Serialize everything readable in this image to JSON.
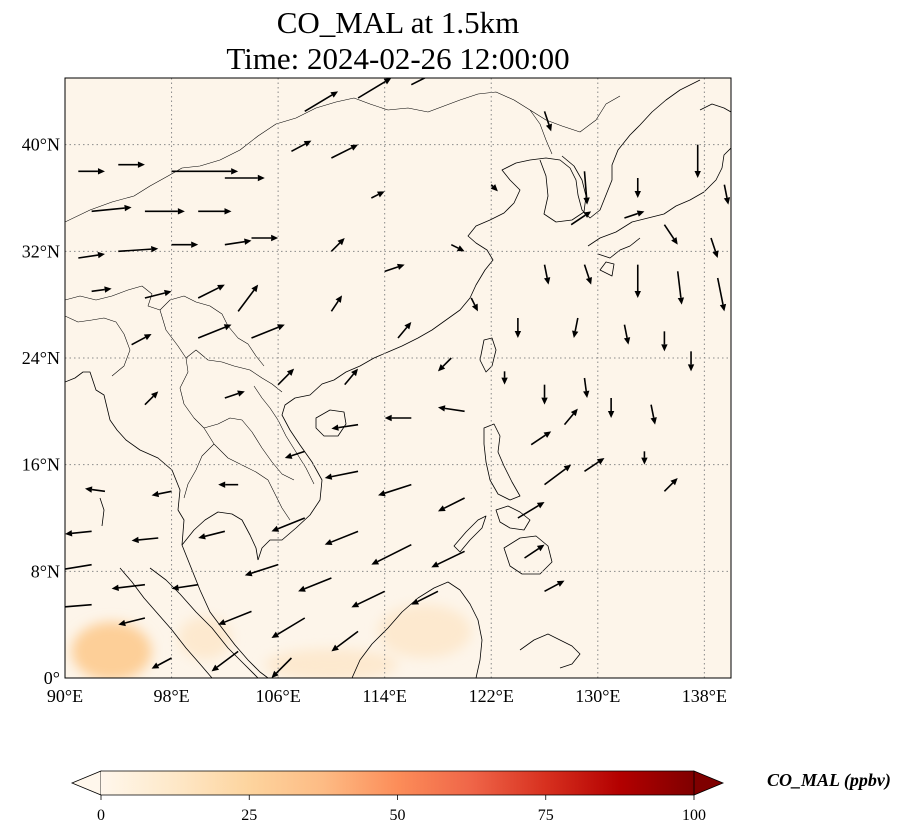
{
  "title": {
    "line1": "CO_MAL at 1.5km",
    "line2": "Time: 2024-02-26 12:00:00"
  },
  "map": {
    "projection": "PlateCarree",
    "lon_range": [
      90,
      140
    ],
    "lat_range": [
      0,
      45
    ],
    "gridlines": "dotted",
    "coastlines": true,
    "borders": true,
    "x_ticks": [
      {
        "lon": 90,
        "label": "90°E"
      },
      {
        "lon": 98,
        "label": "98°E"
      },
      {
        "lon": 106,
        "label": "106°E"
      },
      {
        "lon": 114,
        "label": "114°E"
      },
      {
        "lon": 122,
        "label": "122°E"
      },
      {
        "lon": 130,
        "label": "130°E"
      },
      {
        "lon": 138,
        "label": "138°E"
      }
    ],
    "y_ticks": [
      {
        "lat": 0,
        "label": "0°"
      },
      {
        "lat": 8,
        "label": "8°N"
      },
      {
        "lat": 16,
        "label": "16°N"
      },
      {
        "lat": 24,
        "label": "24°N"
      },
      {
        "lat": 32,
        "label": "32°N"
      },
      {
        "lat": 40,
        "label": "40°N"
      }
    ],
    "field_colors": {
      "background": "#fdf5ea",
      "low": "#fde9cf",
      "mid": "#fdcf98"
    },
    "enhanced_regions": [
      {
        "lon": 93.5,
        "lat": 2.0,
        "rlon": 3.0,
        "rlat": 2.2,
        "level": "mid"
      },
      {
        "lon": 100.5,
        "lat": 3.0,
        "rlon": 2.0,
        "rlat": 1.6,
        "level": "low"
      },
      {
        "lon": 110.0,
        "lat": 1.0,
        "rlon": 5.0,
        "rlat": 1.2,
        "level": "low"
      },
      {
        "lon": 117.0,
        "lat": 3.5,
        "rlon": 3.5,
        "rlat": 2.0,
        "level": "low"
      }
    ],
    "wind_vectors": [
      {
        "lon": 91.0,
        "lat": 38.0,
        "u": 2.0,
        "v": 0.0
      },
      {
        "lon": 94.0,
        "lat": 38.5,
        "u": 2.0,
        "v": 0.0
      },
      {
        "lon": 98.0,
        "lat": 38.0,
        "u": 5.0,
        "v": 0.0
      },
      {
        "lon": 102.0,
        "lat": 37.5,
        "u": 3.0,
        "v": 0.0
      },
      {
        "lon": 92.0,
        "lat": 35.0,
        "u": 3.0,
        "v": 0.3
      },
      {
        "lon": 96.0,
        "lat": 35.0,
        "u": 3.0,
        "v": 0.0
      },
      {
        "lon": 100.0,
        "lat": 35.0,
        "u": 2.5,
        "v": 0.0
      },
      {
        "lon": 104.0,
        "lat": 33.0,
        "u": 2.0,
        "v": 0.0
      },
      {
        "lon": 91.0,
        "lat": 31.5,
        "u": 2.0,
        "v": 0.3
      },
      {
        "lon": 94.0,
        "lat": 32.0,
        "u": 3.0,
        "v": 0.2
      },
      {
        "lon": 98.0,
        "lat": 32.5,
        "u": 2.0,
        "v": 0.0
      },
      {
        "lon": 102.0,
        "lat": 32.5,
        "u": 2.0,
        "v": 0.3
      },
      {
        "lon": 92.0,
        "lat": 29.0,
        "u": 1.5,
        "v": 0.2
      },
      {
        "lon": 96.0,
        "lat": 28.5,
        "u": 2.0,
        "v": 0.5
      },
      {
        "lon": 100.0,
        "lat": 28.5,
        "u": 2.0,
        "v": 1.0
      },
      {
        "lon": 103.0,
        "lat": 27.5,
        "u": 1.5,
        "v": 2.0
      },
      {
        "lon": 100.0,
        "lat": 25.5,
        "u": 2.5,
        "v": 1.0
      },
      {
        "lon": 104.0,
        "lat": 25.5,
        "u": 2.5,
        "v": 1.0
      },
      {
        "lon": 95.0,
        "lat": 25.0,
        "u": 1.5,
        "v": 0.8
      },
      {
        "lon": 96.0,
        "lat": 20.5,
        "u": 1.0,
        "v": 1.0
      },
      {
        "lon": 102.0,
        "lat": 21.0,
        "u": 1.5,
        "v": 0.5
      },
      {
        "lon": 106.0,
        "lat": 22.0,
        "u": 1.2,
        "v": 1.2
      },
      {
        "lon": 108.0,
        "lat": 42.5,
        "u": 2.5,
        "v": 1.5
      },
      {
        "lon": 112.0,
        "lat": 43.5,
        "u": 2.5,
        "v": 1.5
      },
      {
        "lon": 116.0,
        "lat": 44.5,
        "u": 3.0,
        "v": 1.5
      },
      {
        "lon": 110.0,
        "lat": 39.0,
        "u": 2.0,
        "v": 1.0
      },
      {
        "lon": 107.0,
        "lat": 39.5,
        "u": 1.5,
        "v": 0.8
      },
      {
        "lon": 113.0,
        "lat": 36.0,
        "u": 1.0,
        "v": 0.5
      },
      {
        "lon": 110.0,
        "lat": 32.0,
        "u": 1.0,
        "v": 1.0
      },
      {
        "lon": 114.0,
        "lat": 30.5,
        "u": 1.5,
        "v": 0.5
      },
      {
        "lon": 110.0,
        "lat": 27.5,
        "u": 0.8,
        "v": 1.2
      },
      {
        "lon": 115.0,
        "lat": 25.5,
        "u": 1.0,
        "v": 1.2
      },
      {
        "lon": 111.0,
        "lat": 22.0,
        "u": 1.0,
        "v": 1.2
      },
      {
        "lon": 116.0,
        "lat": 19.5,
        "u": -2.0,
        "v": 0.0
      },
      {
        "lon": 120.0,
        "lat": 20.0,
        "u": -2.0,
        "v": 0.3
      },
      {
        "lon": 112.0,
        "lat": 19.0,
        "u": -2.0,
        "v": -0.3
      },
      {
        "lon": 108.0,
        "lat": 17.0,
        "u": -1.5,
        "v": -0.5
      },
      {
        "lon": 112.0,
        "lat": 15.5,
        "u": -2.5,
        "v": -0.5
      },
      {
        "lon": 116.0,
        "lat": 14.5,
        "u": -2.5,
        "v": -0.8
      },
      {
        "lon": 120.0,
        "lat": 13.5,
        "u": -2.0,
        "v": -1.0
      },
      {
        "lon": 108.0,
        "lat": 12.0,
        "u": -2.5,
        "v": -1.0
      },
      {
        "lon": 112.0,
        "lat": 11.0,
        "u": -2.5,
        "v": -1.0
      },
      {
        "lon": 116.0,
        "lat": 10.0,
        "u": -3.0,
        "v": -1.5
      },
      {
        "lon": 120.0,
        "lat": 9.5,
        "u": -2.5,
        "v": -1.2
      },
      {
        "lon": 106.0,
        "lat": 8.5,
        "u": -2.5,
        "v": -0.8
      },
      {
        "lon": 110.0,
        "lat": 7.5,
        "u": -2.5,
        "v": -1.0
      },
      {
        "lon": 114.0,
        "lat": 6.5,
        "u": -2.5,
        "v": -1.2
      },
      {
        "lon": 118.0,
        "lat": 6.5,
        "u": -2.0,
        "v": -1.0
      },
      {
        "lon": 104.0,
        "lat": 5.0,
        "u": -2.5,
        "v": -1.0
      },
      {
        "lon": 108.0,
        "lat": 4.5,
        "u": -2.5,
        "v": -1.5
      },
      {
        "lon": 112.0,
        "lat": 3.5,
        "u": -2.0,
        "v": -1.5
      },
      {
        "lon": 103.0,
        "lat": 2.0,
        "u": -2.0,
        "v": -1.5
      },
      {
        "lon": 107.0,
        "lat": 1.5,
        "u": -1.5,
        "v": -1.5
      },
      {
        "lon": 92.0,
        "lat": 8.5,
        "u": -3.0,
        "v": -0.5
      },
      {
        "lon": 96.0,
        "lat": 7.0,
        "u": -2.5,
        "v": -0.3
      },
      {
        "lon": 100.0,
        "lat": 7.0,
        "u": -2.0,
        "v": -0.3
      },
      {
        "lon": 92.0,
        "lat": 5.5,
        "u": -2.5,
        "v": -0.2
      },
      {
        "lon": 96.0,
        "lat": 4.5,
        "u": -2.0,
        "v": -0.5
      },
      {
        "lon": 98.0,
        "lat": 1.5,
        "u": -1.5,
        "v": -0.8
      },
      {
        "lon": 92.0,
        "lat": 11.0,
        "u": -2.0,
        "v": -0.2
      },
      {
        "lon": 97.0,
        "lat": 10.5,
        "u": -2.0,
        "v": -0.2
      },
      {
        "lon": 93.0,
        "lat": 14.0,
        "u": -1.5,
        "v": 0.2
      },
      {
        "lon": 98.0,
        "lat": 14.0,
        "u": -1.5,
        "v": -0.3
      },
      {
        "lon": 103.0,
        "lat": 14.5,
        "u": -1.5,
        "v": 0.0
      },
      {
        "lon": 102.0,
        "lat": 11.0,
        "u": -2.0,
        "v": -0.5
      },
      {
        "lon": 124.0,
        "lat": 12.0,
        "u": 2.0,
        "v": 1.2
      },
      {
        "lon": 126.0,
        "lat": 14.5,
        "u": 2.0,
        "v": 1.5
      },
      {
        "lon": 129.0,
        "lat": 15.5,
        "u": 1.5,
        "v": 1.0
      },
      {
        "lon": 125.0,
        "lat": 17.5,
        "u": 1.5,
        "v": 1.0
      },
      {
        "lon": 127.5,
        "lat": 19.0,
        "u": 1.0,
        "v": 1.2
      },
      {
        "lon": 124.5,
        "lat": 9.0,
        "u": 1.5,
        "v": 1.0
      },
      {
        "lon": 126.0,
        "lat": 6.5,
        "u": 1.5,
        "v": 0.8
      },
      {
        "lon": 123.0,
        "lat": 23.0,
        "u": 0.0,
        "v": -1.0
      },
      {
        "lon": 126.0,
        "lat": 22.0,
        "u": 0.0,
        "v": -1.5
      },
      {
        "lon": 129.0,
        "lat": 22.5,
        "u": 0.2,
        "v": -1.5
      },
      {
        "lon": 131.0,
        "lat": 21.0,
        "u": 0.0,
        "v": -1.5
      },
      {
        "lon": 134.0,
        "lat": 20.5,
        "u": 0.3,
        "v": -1.5
      },
      {
        "lon": 124.0,
        "lat": 27.0,
        "u": 0.0,
        "v": -1.5
      },
      {
        "lon": 128.5,
        "lat": 27.0,
        "u": -0.3,
        "v": -1.5
      },
      {
        "lon": 132.0,
        "lat": 26.5,
        "u": 0.3,
        "v": -1.5
      },
      {
        "lon": 135.0,
        "lat": 26.0,
        "u": 0.0,
        "v": -1.5
      },
      {
        "lon": 137.0,
        "lat": 24.5,
        "u": 0.0,
        "v": -1.5
      },
      {
        "lon": 126.0,
        "lat": 31.0,
        "u": 0.3,
        "v": -1.5
      },
      {
        "lon": 129.0,
        "lat": 31.0,
        "u": 0.5,
        "v": -1.5
      },
      {
        "lon": 133.0,
        "lat": 31.0,
        "u": 0.0,
        "v": -2.5
      },
      {
        "lon": 136.0,
        "lat": 30.5,
        "u": 0.3,
        "v": -2.5
      },
      {
        "lon": 139.0,
        "lat": 30.0,
        "u": 0.5,
        "v": -2.5
      },
      {
        "lon": 128.0,
        "lat": 34.0,
        "u": 1.5,
        "v": 1.0
      },
      {
        "lon": 132.0,
        "lat": 34.5,
        "u": 1.5,
        "v": 0.5
      },
      {
        "lon": 135.0,
        "lat": 34.0,
        "u": 1.0,
        "v": -1.5
      },
      {
        "lon": 138.5,
        "lat": 33.0,
        "u": 0.5,
        "v": -1.5
      },
      {
        "lon": 129.0,
        "lat": 38.0,
        "u": 0.2,
        "v": -2.5
      },
      {
        "lon": 133.0,
        "lat": 37.5,
        "u": 0.0,
        "v": -1.5
      },
      {
        "lon": 137.5,
        "lat": 40.0,
        "u": 0.0,
        "v": -2.5
      },
      {
        "lon": 139.5,
        "lat": 37.0,
        "u": 0.3,
        "v": -1.5
      },
      {
        "lon": 126.0,
        "lat": 42.5,
        "u": 0.5,
        "v": -1.5
      },
      {
        "lon": 122.0,
        "lat": 37.0,
        "u": 0.5,
        "v": -0.5
      },
      {
        "lon": 119.0,
        "lat": 32.5,
        "u": 1.0,
        "v": -0.5
      },
      {
        "lon": 120.5,
        "lat": 28.5,
        "u": 0.5,
        "v": -1.0
      },
      {
        "lon": 119.0,
        "lat": 24.0,
        "u": -1.0,
        "v": -1.0
      },
      {
        "lon": 135.0,
        "lat": 14.0,
        "u": 1.0,
        "v": 1.0
      },
      {
        "lon": 133.5,
        "lat": 17.0,
        "u": 0.0,
        "v": -1.0
      }
    ]
  },
  "colorbar": {
    "label": "CO_MAL (ppbv)",
    "min": 0,
    "max": 100,
    "extend": "both",
    "colormap": "OrRd",
    "ticks": [
      {
        "value": 0,
        "label": "0"
      },
      {
        "value": 25,
        "label": "25"
      },
      {
        "value": 50,
        "label": "50"
      },
      {
        "value": 75,
        "label": "75"
      },
      {
        "value": 100,
        "label": "100"
      }
    ]
  }
}
